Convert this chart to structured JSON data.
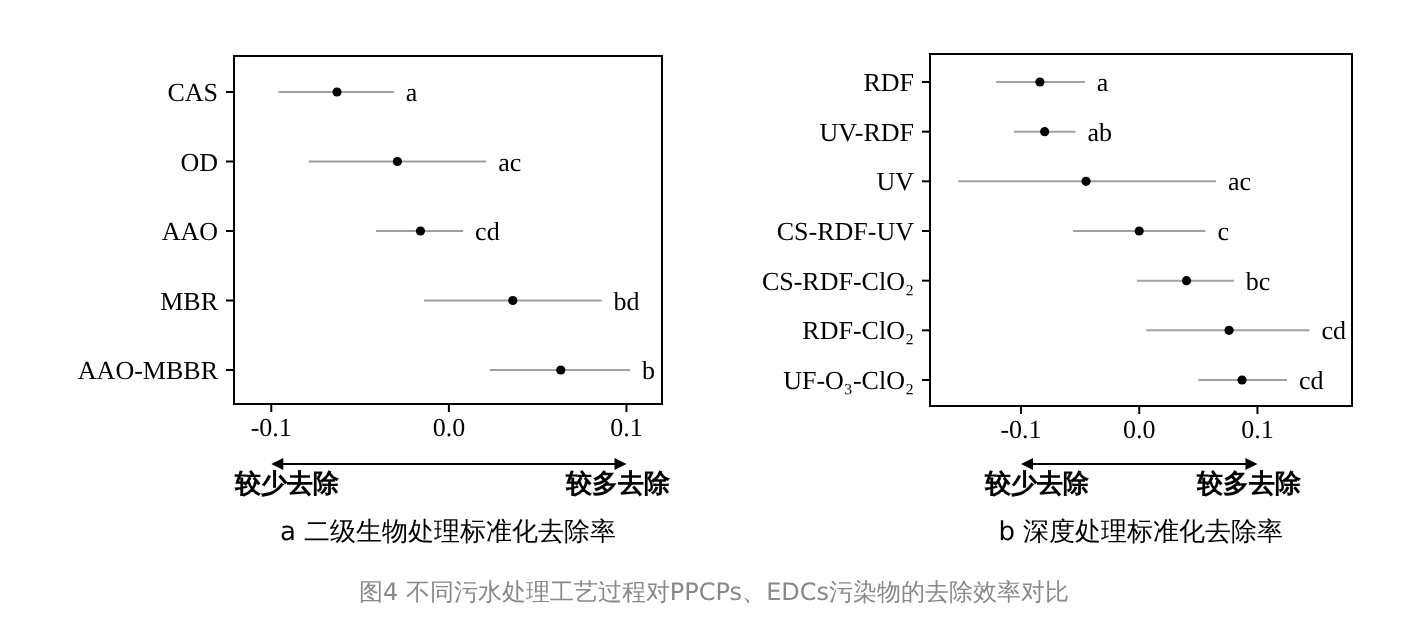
{
  "chart_data": [
    {
      "type": "scatter",
      "orientation": "horizontal",
      "title": "a 二级生物处理标准化去除率",
      "categories": [
        "CAS",
        "OD",
        "AAO",
        "MBR",
        "AAO-MBBR"
      ],
      "values": [
        -0.063,
        -0.029,
        -0.016,
        0.036,
        0.063
      ],
      "color": "#000000",
      "errors": [
        [
          -0.096,
          -0.031
        ],
        [
          -0.079,
          0.021
        ],
        [
          -0.041,
          0.008
        ],
        [
          -0.014,
          0.086
        ],
        [
          0.023,
          0.102
        ]
      ],
      "xlim": [
        -0.121,
        0.12
      ],
      "xticks": [
        {
          "value": -0.1,
          "label": "-0.1"
        },
        {
          "value": 0,
          "label": "0.0"
        },
        {
          "value": 0.1,
          "label": "0.1"
        }
      ],
      "marker": "circle",
      "annotations": [
        {
          "text": "a",
          "x": -0.031,
          "y": "CAS"
        },
        {
          "text": "ac",
          "x": 0.021,
          "y": "OD"
        },
        {
          "text": "cd",
          "x": 0.008,
          "y": "AAO"
        },
        {
          "text": "bd",
          "x": 0.086,
          "y": "MBR"
        },
        {
          "text": "b",
          "x": 0.102,
          "y": "AAO-MBBR"
        },
        "较少去除",
        "较多去除",
        "图4 不同污水处理工艺过程对PPCPs、EDCs污染物的去除效率对比"
      ]
    },
    {
      "type": "scatter",
      "orientation": "horizontal",
      "title": "b 深度处理标准化去除率",
      "categories": [
        "RDF",
        "UV-RDF",
        "UV",
        "CS-RDF-UV",
        "CS-RDF-ClO₂",
        "RDF-ClO₂",
        "UF-O₃-ClO₂"
      ],
      "values": [
        -0.084,
        -0.08,
        -0.045,
        0.0,
        0.04,
        0.076,
        0.087
      ],
      "color": "#000000",
      "errors": [
        [
          -0.121,
          -0.046
        ],
        [
          -0.106,
          -0.054
        ],
        [
          -0.153,
          0.065
        ],
        [
          -0.056,
          0.056
        ],
        [
          -0.002,
          0.08
        ],
        [
          0.006,
          0.144
        ],
        [
          0.05,
          0.125
        ]
      ],
      "xlim": [
        -0.177,
        0.18
      ],
      "xticks": [
        {
          "value": -0.1,
          "label": "-0.1"
        },
        {
          "value": 0,
          "label": "0.0"
        },
        {
          "value": 0.1,
          "label": "0.1"
        }
      ],
      "marker": "circle",
      "annotations": [
        {
          "text": "a",
          "x": -0.046,
          "y": "RDF"
        },
        {
          "text": "ab",
          "x": -0.054,
          "y": "UV-RDF"
        },
        {
          "text": "ac",
          "x": 0.065,
          "y": "UV"
        },
        {
          "text": "c",
          "x": 0.056,
          "y": "CS-RDF-UV"
        },
        {
          "text": "bc",
          "x": 0.08,
          "y": "CS-RDF-ClO₂"
        },
        {
          "text": "cd",
          "x": 0.144,
          "y": "RDF-ClO₂"
        },
        {
          "text": "cd",
          "x": 0.125,
          "y": "UF-O₃-ClO₂"
        },
        "较少去除",
        "较多去除"
      ]
    }
  ]
}
